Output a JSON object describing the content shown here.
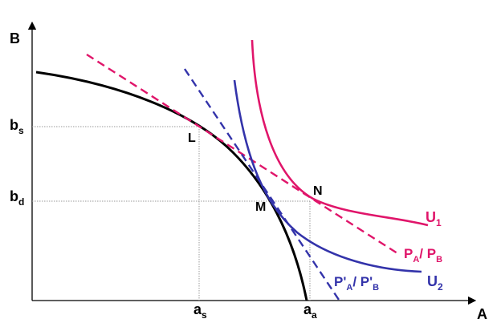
{
  "axes": {
    "y_label": "B",
    "x_label": "A"
  },
  "y_ticks": [
    {
      "main": "b",
      "sub": "s"
    },
    {
      "main": "b",
      "sub": "d"
    }
  ],
  "x_ticks": [
    {
      "main": "a",
      "sub": "s"
    },
    {
      "main": "a",
      "sub": "a"
    }
  ],
  "points": {
    "L": "L",
    "M": "M",
    "N": "N"
  },
  "curves": {
    "u1": {
      "main": "U",
      "sub": "1"
    },
    "u2": {
      "main": "U",
      "sub": "2"
    }
  },
  "price_lines": {
    "ratio1": {
      "p1": "P",
      "s1": "A",
      "mid": "/ P",
      "s2": "B"
    },
    "ratio2": {
      "p1": "P'",
      "s1": "A",
      "mid": "/ P'",
      "s2": "B"
    }
  },
  "colors": {
    "ppf": "#000000",
    "u1": "#e0156a",
    "u2": "#3333aa",
    "guides": "#999999"
  }
}
